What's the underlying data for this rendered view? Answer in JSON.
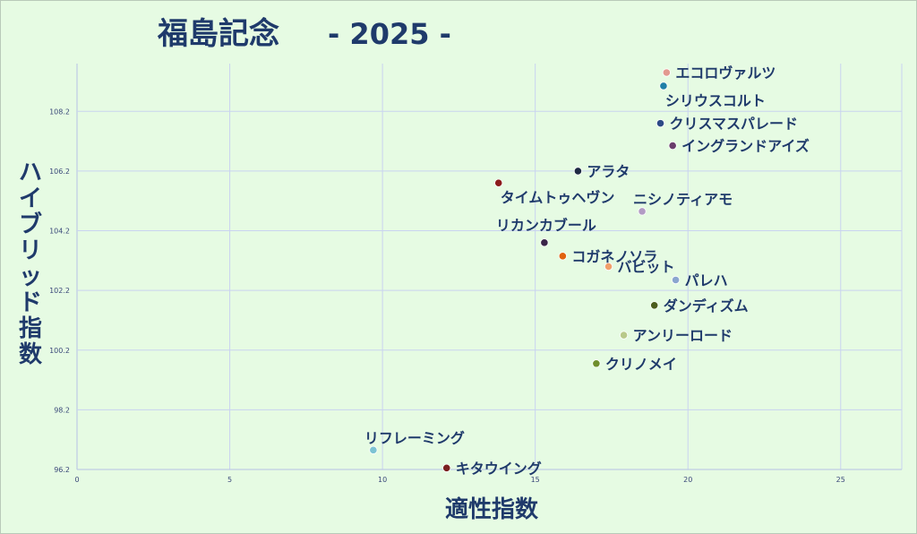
{
  "chart_data": {
    "type": "scatter",
    "title_main": "福島記念",
    "title_sub": "- 2025 -",
    "xlabel": "適性指数",
    "ylabel": "ハイブリッド指数",
    "xlim": [
      0,
      27
    ],
    "ylim": [
      96.2,
      109.8
    ],
    "x_ticks": [
      "0",
      "5",
      "10",
      "15",
      "20",
      "25"
    ],
    "y_ticks": [
      "96.2",
      "98.2",
      "100.2",
      "102.2",
      "104.2",
      "106.2",
      "108.2"
    ],
    "grid": true,
    "points": [
      {
        "name": "エコロヴァルツ",
        "x": 19.3,
        "y": 109.5,
        "color": "#e29a8f",
        "label_pos": "right"
      },
      {
        "name": "シリウスコルト",
        "x": 19.2,
        "y": 109.05,
        "color": "#1f7fa7",
        "label_pos": "below-right"
      },
      {
        "name": "クリスマスパレード",
        "x": 19.1,
        "y": 107.8,
        "color": "#2c4a86",
        "label_pos": "right"
      },
      {
        "name": "イングランドアイズ",
        "x": 19.5,
        "y": 107.05,
        "color": "#6a3d6b",
        "label_pos": "right"
      },
      {
        "name": "アラタ",
        "x": 16.4,
        "y": 106.2,
        "color": "#1f2a44",
        "label_pos": "right"
      },
      {
        "name": "タイムトゥヘヴン",
        "x": 13.8,
        "y": 105.8,
        "color": "#8b1c1c",
        "label_pos": "below-right"
      },
      {
        "name": "ニシノティアモ",
        "x": 18.5,
        "y": 104.85,
        "color": "#b29bc4",
        "label_pos": "above-right"
      },
      {
        "name": "リカンカブール",
        "x": 15.3,
        "y": 103.8,
        "color": "#3a2448",
        "label_pos": "above-left"
      },
      {
        "name": "コガネノソラ",
        "x": 15.9,
        "y": 103.35,
        "color": "#e0620f",
        "label_pos": "right"
      },
      {
        "name": "バビット",
        "x": 17.4,
        "y": 103.0,
        "color": "#f0a06a",
        "label_pos": "right"
      },
      {
        "name": "パレハ",
        "x": 19.6,
        "y": 102.55,
        "color": "#8aa6cf",
        "label_pos": "right"
      },
      {
        "name": "ダンディズム",
        "x": 18.9,
        "y": 101.7,
        "color": "#4c5d1e",
        "label_pos": "right"
      },
      {
        "name": "アンリーロード",
        "x": 17.9,
        "y": 100.7,
        "color": "#b8c98a",
        "label_pos": "right"
      },
      {
        "name": "クリノメイ",
        "x": 17.0,
        "y": 99.75,
        "color": "#6f8e2c",
        "label_pos": "right"
      },
      {
        "name": "リフレーミング",
        "x": 9.7,
        "y": 96.85,
        "color": "#7cc3d3",
        "label_pos": "above-right"
      },
      {
        "name": "キタウイング",
        "x": 12.1,
        "y": 96.25,
        "color": "#7a1f1f",
        "label_pos": "right"
      }
    ]
  }
}
